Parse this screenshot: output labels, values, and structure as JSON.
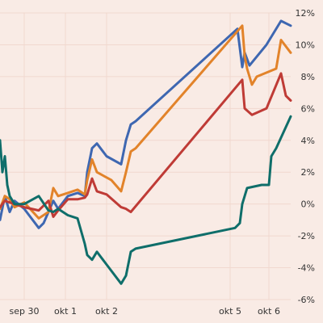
{
  "chart_data": {
    "type": "line",
    "title": "",
    "xlabel": "",
    "ylabel": "",
    "x_ticks": [
      {
        "label": "sep 30",
        "x": 0.5
      },
      {
        "label": "okt 1",
        "x": 1.35
      },
      {
        "label": "okt 2",
        "x": 2.2
      },
      {
        "label": "okt 5",
        "x": 4.75
      },
      {
        "label": "okt 6",
        "x": 5.55
      }
    ],
    "xlim": [
      0,
      6
    ],
    "ylim": [
      -6,
      12
    ],
    "y_ticks": [
      -6,
      -4,
      -2,
      0,
      2,
      4,
      6,
      8,
      10,
      12
    ],
    "y_tick_labels": [
      "-6%",
      "-4%",
      "-2%",
      "0%",
      "2%",
      "4%",
      "6%",
      "8%",
      "10%",
      "12%"
    ],
    "y_axis_side": "right",
    "grid": true,
    "legend": "none",
    "series": [
      {
        "color": "#3e67b1",
        "points": [
          [
            0.0,
            -1.0
          ],
          [
            0.1,
            0.5
          ],
          [
            0.2,
            -0.5
          ],
          [
            0.3,
            0.2
          ],
          [
            0.5,
            -0.3
          ],
          [
            0.8,
            -1.5
          ],
          [
            0.9,
            -1.2
          ],
          [
            1.0,
            -0.5
          ],
          [
            1.1,
            0.2
          ],
          [
            1.2,
            -0.3
          ],
          [
            1.4,
            0.5
          ],
          [
            1.6,
            0.7
          ],
          [
            1.75,
            0.5
          ],
          [
            1.8,
            2.0
          ],
          [
            1.9,
            3.5
          ],
          [
            2.0,
            3.8
          ],
          [
            2.2,
            3.0
          ],
          [
            2.5,
            2.5
          ],
          [
            2.6,
            4.0
          ],
          [
            2.7,
            5.0
          ],
          [
            2.8,
            5.2
          ],
          [
            4.9,
            11.0
          ],
          [
            5.0,
            8.6
          ],
          [
            5.05,
            9.5
          ],
          [
            5.15,
            8.7
          ],
          [
            5.5,
            10.0
          ],
          [
            5.8,
            11.5
          ],
          [
            6.0,
            11.2
          ]
        ]
      },
      {
        "color": "#e2832a",
        "points": [
          [
            0.0,
            -0.3
          ],
          [
            0.1,
            0.5
          ],
          [
            0.2,
            0.3
          ],
          [
            0.3,
            -0.2
          ],
          [
            0.5,
            0.1
          ],
          [
            0.8,
            -0.9
          ],
          [
            1.0,
            -0.5
          ],
          [
            1.1,
            1.0
          ],
          [
            1.2,
            0.5
          ],
          [
            1.4,
            0.7
          ],
          [
            1.6,
            0.9
          ],
          [
            1.75,
            0.6
          ],
          [
            1.8,
            1.5
          ],
          [
            1.9,
            2.8
          ],
          [
            2.0,
            2.0
          ],
          [
            2.3,
            1.5
          ],
          [
            2.5,
            0.8
          ],
          [
            2.6,
            2.0
          ],
          [
            2.7,
            3.3
          ],
          [
            2.8,
            3.5
          ],
          [
            5.0,
            11.2
          ],
          [
            5.05,
            9.3
          ],
          [
            5.1,
            8.5
          ],
          [
            5.2,
            7.5
          ],
          [
            5.3,
            8.0
          ],
          [
            5.7,
            8.5
          ],
          [
            5.8,
            10.3
          ],
          [
            6.0,
            9.5
          ]
        ]
      },
      {
        "color": "#bf3b36",
        "points": [
          [
            0.0,
            -0.2
          ],
          [
            0.1,
            0.2
          ],
          [
            0.2,
            0.1
          ],
          [
            0.3,
            0.0
          ],
          [
            0.5,
            -0.2
          ],
          [
            0.8,
            -0.4
          ],
          [
            1.0,
            0.2
          ],
          [
            1.1,
            -0.8
          ],
          [
            1.2,
            -0.4
          ],
          [
            1.4,
            0.3
          ],
          [
            1.6,
            0.3
          ],
          [
            1.75,
            0.4
          ],
          [
            1.8,
            0.6
          ],
          [
            1.9,
            1.6
          ],
          [
            2.0,
            0.8
          ],
          [
            2.2,
            0.6
          ],
          [
            2.5,
            -0.2
          ],
          [
            2.6,
            -0.3
          ],
          [
            2.7,
            -0.5
          ],
          [
            5.0,
            7.8
          ],
          [
            5.05,
            6.0
          ],
          [
            5.2,
            5.6
          ],
          [
            5.5,
            6.0
          ],
          [
            5.8,
            8.2
          ],
          [
            5.9,
            6.8
          ],
          [
            6.0,
            6.5
          ]
        ]
      },
      {
        "color": "#0f6e6a",
        "points": [
          [
            0.0,
            4.0
          ],
          [
            0.05,
            2.0
          ],
          [
            0.1,
            3.0
          ],
          [
            0.15,
            1.2
          ],
          [
            0.2,
            0.5
          ],
          [
            0.3,
            0.0
          ],
          [
            0.5,
            0.0
          ],
          [
            0.8,
            0.5
          ],
          [
            1.0,
            -0.4
          ],
          [
            1.1,
            -0.5
          ],
          [
            1.2,
            -0.3
          ],
          [
            1.4,
            -0.7
          ],
          [
            1.6,
            -0.9
          ],
          [
            1.75,
            -2.5
          ],
          [
            1.8,
            -3.2
          ],
          [
            1.9,
            -3.5
          ],
          [
            2.0,
            -3.0
          ],
          [
            2.2,
            -3.8
          ],
          [
            2.5,
            -5.0
          ],
          [
            2.6,
            -4.5
          ],
          [
            2.7,
            -3.0
          ],
          [
            2.8,
            -2.8
          ],
          [
            4.85,
            -1.5
          ],
          [
            4.95,
            -1.2
          ],
          [
            5.0,
            0.0
          ],
          [
            5.1,
            1.0
          ],
          [
            5.4,
            1.2
          ],
          [
            5.55,
            1.2
          ],
          [
            5.6,
            3.0
          ],
          [
            5.7,
            3.5
          ],
          [
            6.0,
            5.5
          ]
        ]
      }
    ]
  }
}
